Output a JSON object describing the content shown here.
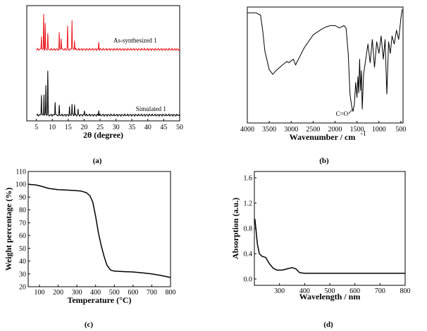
{
  "chart_data": [
    {
      "panel": "(a)",
      "type": "line",
      "xlabel": "2θ (degree)",
      "ylabel": "",
      "xlim": [
        2,
        50
      ],
      "xticks": [
        5,
        10,
        15,
        20,
        25,
        30,
        35,
        40,
        45,
        50
      ],
      "yaxis_visible": false,
      "annotations": [
        "As-synthesized 1",
        "Simulated 1"
      ],
      "series": [
        {
          "name": "As-synthesized 1",
          "color": "#e8141b",
          "baseline": 0.62,
          "peaks": [
            {
              "x": 6.6,
              "h": 0.12
            },
            {
              "x": 7.3,
              "h": 0.3
            },
            {
              "x": 7.8,
              "h": 0.22
            },
            {
              "x": 8.6,
              "h": 0.14
            },
            {
              "x": 12.2,
              "h": 0.14
            },
            {
              "x": 12.8,
              "h": 0.1
            },
            {
              "x": 14.8,
              "h": 0.2
            },
            {
              "x": 16.2,
              "h": 0.26
            },
            {
              "x": 17.0,
              "h": 0.08
            },
            {
              "x": 24.6,
              "h": 0.06
            }
          ]
        },
        {
          "name": "Simulated 1",
          "color": "#000000",
          "baseline": 0.05,
          "peaks": [
            {
              "x": 6.6,
              "h": 0.18
            },
            {
              "x": 7.4,
              "h": 0.18
            },
            {
              "x": 8.0,
              "h": 0.26
            },
            {
              "x": 8.6,
              "h": 0.38
            },
            {
              "x": 10.9,
              "h": 0.12
            },
            {
              "x": 12.2,
              "h": 0.08
            },
            {
              "x": 15.4,
              "h": 0.07
            },
            {
              "x": 16.2,
              "h": 0.1
            },
            {
              "x": 17.0,
              "h": 0.09
            },
            {
              "x": 18.1,
              "h": 0.05
            },
            {
              "x": 20.1,
              "h": 0.04
            },
            {
              "x": 24.6,
              "h": 0.04
            }
          ]
        }
      ]
    },
    {
      "panel": "(b)",
      "type": "line",
      "xlabel": "Wavenumber / cm",
      "xlabel_superscript": "-1",
      "ylabel": "",
      "xlim": [
        4000,
        450
      ],
      "xticks": [
        4000,
        3500,
        3000,
        2500,
        2000,
        1500,
        1000,
        500
      ],
      "yaxis_visible": false,
      "annotations": [
        "C=O"
      ],
      "series": [
        {
          "name": "",
          "color": "#000000",
          "points": [
            [
              4000,
              0.95
            ],
            [
              3800,
              0.95
            ],
            [
              3700,
              0.93
            ],
            [
              3650,
              0.8
            ],
            [
              3600,
              0.62
            ],
            [
              3500,
              0.46
            ],
            [
              3420,
              0.42
            ],
            [
              3350,
              0.45
            ],
            [
              3200,
              0.5
            ],
            [
              3100,
              0.53
            ],
            [
              3050,
              0.52
            ],
            [
              2950,
              0.55
            ],
            [
              2900,
              0.5
            ],
            [
              2850,
              0.54
            ],
            [
              2700,
              0.65
            ],
            [
              2500,
              0.76
            ],
            [
              2300,
              0.81
            ],
            [
              2200,
              0.83
            ],
            [
              2100,
              0.84
            ],
            [
              2000,
              0.84
            ],
            [
              1900,
              0.82
            ],
            [
              1800,
              0.84
            ],
            [
              1750,
              0.82
            ],
            [
              1700,
              0.6
            ],
            [
              1660,
              0.25
            ],
            [
              1620,
              0.14
            ],
            [
              1590,
              0.1
            ],
            [
              1560,
              0.16
            ],
            [
              1530,
              0.35
            ],
            [
              1500,
              0.22
            ],
            [
              1480,
              0.4
            ],
            [
              1460,
              0.26
            ],
            [
              1440,
              0.55
            ],
            [
              1420,
              0.28
            ],
            [
              1400,
              0.45
            ],
            [
              1380,
              0.12
            ],
            [
              1350,
              0.42
            ],
            [
              1300,
              0.55
            ],
            [
              1250,
              0.68
            ],
            [
              1200,
              0.52
            ],
            [
              1150,
              0.72
            ],
            [
              1100,
              0.48
            ],
            [
              1050,
              0.7
            ],
            [
              1000,
              0.6
            ],
            [
              950,
              0.75
            ],
            [
              900,
              0.55
            ],
            [
              860,
              0.72
            ],
            [
              820,
              0.25
            ],
            [
              780,
              0.7
            ],
            [
              740,
              0.6
            ],
            [
              700,
              0.75
            ],
            [
              650,
              0.68
            ],
            [
              600,
              0.8
            ],
            [
              550,
              0.72
            ],
            [
              500,
              0.9
            ],
            [
              470,
              0.98
            ]
          ]
        }
      ]
    },
    {
      "panel": "(c)",
      "type": "line",
      "xlabel": "Temperature (°C)",
      "ylabel": "Weight percentage (%)",
      "xlim": [
        40,
        800
      ],
      "ylim": [
        20,
        110
      ],
      "xticks": [
        100,
        200,
        300,
        400,
        500,
        600,
        700,
        800
      ],
      "yticks": [
        20,
        30,
        40,
        50,
        60,
        70,
        80,
        90,
        100,
        110
      ],
      "series": [
        {
          "name": "",
          "color": "#000000",
          "points": [
            [
              40,
              100
            ],
            [
              80,
              99.5
            ],
            [
              110,
              98.5
            ],
            [
              150,
              96.8
            ],
            [
              200,
              95.8
            ],
            [
              260,
              95.4
            ],
            [
              320,
              94.8
            ],
            [
              350,
              93.5
            ],
            [
              370,
              91
            ],
            [
              385,
              86
            ],
            [
              400,
              75
            ],
            [
              415,
              62
            ],
            [
              430,
              52
            ],
            [
              445,
              44
            ],
            [
              460,
              37
            ],
            [
              480,
              33
            ],
            [
              500,
              32.2
            ],
            [
              550,
              31.8
            ],
            [
              600,
              31.5
            ],
            [
              650,
              30.8
            ],
            [
              700,
              30
            ],
            [
              750,
              28.8
            ],
            [
              800,
              27.2
            ]
          ]
        }
      ]
    },
    {
      "panel": "(d)",
      "type": "line",
      "xlabel": "Wavelength / nm",
      "ylabel": "Absorption (a.u.)",
      "xlim": [
        200,
        800
      ],
      "ylim": [
        -0.1,
        1.7
      ],
      "xticks": [
        300,
        400,
        500,
        600,
        700,
        800
      ],
      "yticks": [
        0.0,
        0.4,
        0.8,
        1.2,
        1.6
      ],
      "series": [
        {
          "name": "",
          "color": "#000000",
          "points": [
            [
              202,
              0.95
            ],
            [
              206,
              0.8
            ],
            [
              212,
              0.55
            ],
            [
              220,
              0.4
            ],
            [
              230,
              0.36
            ],
            [
              245,
              0.34
            ],
            [
              260,
              0.24
            ],
            [
              275,
              0.17
            ],
            [
              290,
              0.14
            ],
            [
              310,
              0.14
            ],
            [
              330,
              0.16
            ],
            [
              350,
              0.18
            ],
            [
              365,
              0.16
            ],
            [
              380,
              0.1
            ],
            [
              400,
              0.09
            ],
            [
              500,
              0.09
            ],
            [
              600,
              0.09
            ],
            [
              700,
              0.09
            ],
            [
              800,
              0.09
            ]
          ]
        }
      ]
    }
  ]
}
